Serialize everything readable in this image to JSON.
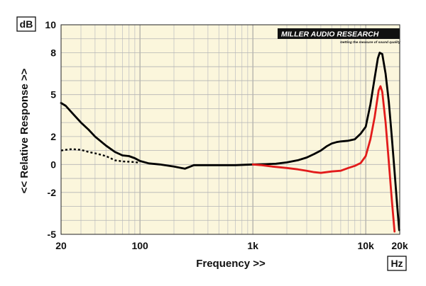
{
  "brand": {
    "text": "MILLER AUDIO RESEARCH",
    "tagline": "Getting the measure of sound quality"
  },
  "chart_data": {
    "type": "line",
    "xscale": "log",
    "xlim": [
      20,
      20000
    ],
    "ylim": [
      -5,
      10
    ],
    "xlabel": "Frequency >>",
    "ylabel": "<< Relative Response >>",
    "y_unit_label": "dB",
    "x_unit_label": "Hz",
    "x_ticks": [
      20,
      100,
      1000,
      10000,
      20000
    ],
    "x_tick_labels": [
      "20",
      "100",
      "1k",
      "10k",
      "20k"
    ],
    "y_ticks": [
      -5,
      -2,
      0,
      2,
      5,
      8,
      10
    ],
    "y_tick_labels": [
      "-5",
      "-2",
      "0",
      "2",
      "5",
      "8",
      "10"
    ],
    "grid": true,
    "background": "#fbf6dc",
    "series": [
      {
        "color": "#000000",
        "style": "solid",
        "points": [
          [
            20,
            4.4
          ],
          [
            22,
            4.2
          ],
          [
            25,
            3.7
          ],
          [
            30,
            3.0
          ],
          [
            35,
            2.5
          ],
          [
            40,
            2.0
          ],
          [
            50,
            1.35
          ],
          [
            60,
            0.9
          ],
          [
            70,
            0.65
          ],
          [
            80,
            0.6
          ],
          [
            90,
            0.45
          ],
          [
            100,
            0.25
          ],
          [
            120,
            0.08
          ],
          [
            150,
            0
          ],
          [
            200,
            -0.15
          ],
          [
            250,
            -0.3
          ],
          [
            300,
            -0.05
          ],
          [
            400,
            -0.05
          ],
          [
            500,
            -0.05
          ],
          [
            700,
            -0.05
          ],
          [
            1000,
            0
          ],
          [
            1300,
            0.02
          ],
          [
            1600,
            0.05
          ],
          [
            2000,
            0.15
          ],
          [
            2500,
            0.3
          ],
          [
            3000,
            0.5
          ],
          [
            3500,
            0.75
          ],
          [
            4000,
            1.0
          ],
          [
            4500,
            1.3
          ],
          [
            5000,
            1.5
          ],
          [
            5500,
            1.6
          ],
          [
            6000,
            1.65
          ],
          [
            7000,
            1.7
          ],
          [
            8000,
            1.8
          ],
          [
            9000,
            2.2
          ],
          [
            10000,
            2.7
          ],
          [
            11000,
            4.3
          ],
          [
            12000,
            6.2
          ],
          [
            12800,
            7.6
          ],
          [
            13300,
            8.0
          ],
          [
            14000,
            7.9
          ],
          [
            15000,
            6.5
          ],
          [
            16000,
            4.5
          ],
          [
            17000,
            2.0
          ],
          [
            18000,
            -0.5
          ],
          [
            19000,
            -3.0
          ],
          [
            19800,
            -4.7
          ]
        ]
      },
      {
        "color": "#e21b1b",
        "style": "solid",
        "points": [
          [
            1000,
            0
          ],
          [
            1200,
            -0.05
          ],
          [
            1500,
            -0.15
          ],
          [
            2000,
            -0.25
          ],
          [
            2500,
            -0.35
          ],
          [
            3000,
            -0.45
          ],
          [
            3500,
            -0.55
          ],
          [
            4000,
            -0.6
          ],
          [
            5000,
            -0.5
          ],
          [
            6000,
            -0.45
          ],
          [
            7000,
            -0.25
          ],
          [
            8000,
            -0.1
          ],
          [
            9000,
            0.1
          ],
          [
            10000,
            0.6
          ],
          [
            11000,
            1.8
          ],
          [
            12000,
            3.4
          ],
          [
            13000,
            5.3
          ],
          [
            13500,
            5.6
          ],
          [
            14000,
            5.2
          ],
          [
            15000,
            3.0
          ],
          [
            16000,
            0.2
          ],
          [
            17000,
            -2.5
          ],
          [
            18000,
            -4.8
          ]
        ]
      },
      {
        "color": "#000000",
        "style": "dotted",
        "points": [
          [
            20,
            1.0
          ],
          [
            22,
            1.05
          ],
          [
            25,
            1.1
          ],
          [
            30,
            1.05
          ],
          [
            35,
            0.9
          ],
          [
            40,
            0.8
          ],
          [
            50,
            0.6
          ],
          [
            60,
            0.3
          ],
          [
            70,
            0.22
          ],
          [
            80,
            0.2
          ],
          [
            90,
            0.17
          ],
          [
            100,
            0.12
          ]
        ]
      }
    ]
  }
}
